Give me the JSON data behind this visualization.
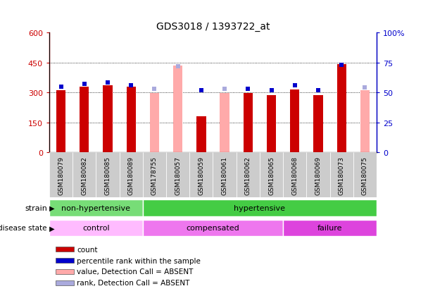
{
  "title": "GDS3018 / 1393722_at",
  "samples": [
    "GSM180079",
    "GSM180082",
    "GSM180085",
    "GSM180089",
    "GSM178755",
    "GSM180057",
    "GSM180059",
    "GSM180061",
    "GSM180062",
    "GSM180065",
    "GSM180068",
    "GSM180069",
    "GSM180073",
    "GSM180075"
  ],
  "counts": [
    310,
    330,
    335,
    330,
    null,
    null,
    180,
    null,
    295,
    285,
    315,
    285,
    440,
    null
  ],
  "counts_absent": [
    null,
    null,
    null,
    null,
    295,
    435,
    null,
    295,
    null,
    null,
    null,
    null,
    null,
    310
  ],
  "percentile_ranks": [
    55,
    57,
    58,
    56,
    null,
    null,
    52,
    null,
    53,
    52,
    56,
    52,
    73,
    null
  ],
  "percentile_ranks_absent": [
    null,
    null,
    null,
    null,
    53,
    72,
    null,
    53,
    null,
    null,
    null,
    null,
    null,
    54
  ],
  "ylim_left": [
    0,
    600
  ],
  "ylim_right": [
    0,
    100
  ],
  "yticks_left": [
    0,
    150,
    300,
    450,
    600
  ],
  "yticks_right": [
    0,
    25,
    50,
    75,
    100
  ],
  "ytick_labels_left": [
    "0",
    "150",
    "300",
    "450",
    "600"
  ],
  "ytick_labels_right": [
    "0",
    "25",
    "50",
    "75",
    "100%"
  ],
  "strain_groups": [
    {
      "label": "non-hypertensive",
      "start": 0,
      "end": 4,
      "color": "#77dd77"
    },
    {
      "label": "hypertensive",
      "start": 4,
      "end": 14,
      "color": "#44cc44"
    }
  ],
  "disease_groups": [
    {
      "label": "control",
      "start": 0,
      "end": 4,
      "color": "#ffbbff"
    },
    {
      "label": "compensated",
      "start": 4,
      "end": 10,
      "color": "#ee77ee"
    },
    {
      "label": "failure",
      "start": 10,
      "end": 14,
      "color": "#dd44dd"
    }
  ],
  "bar_color_present": "#cc0000",
  "bar_color_absent": "#ffaaaa",
  "dot_color_present": "#0000cc",
  "dot_color_absent": "#aaaadd",
  "bg_color": "#ffffff",
  "axis_left_color": "#cc0000",
  "axis_right_color": "#0000cc",
  "xtick_bg": "#cccccc",
  "legend_items": [
    {
      "label": "count",
      "color": "#cc0000"
    },
    {
      "label": "percentile rank within the sample",
      "color": "#0000cc"
    },
    {
      "label": "value, Detection Call = ABSENT",
      "color": "#ffaaaa"
    },
    {
      "label": "rank, Detection Call = ABSENT",
      "color": "#aaaadd"
    }
  ]
}
